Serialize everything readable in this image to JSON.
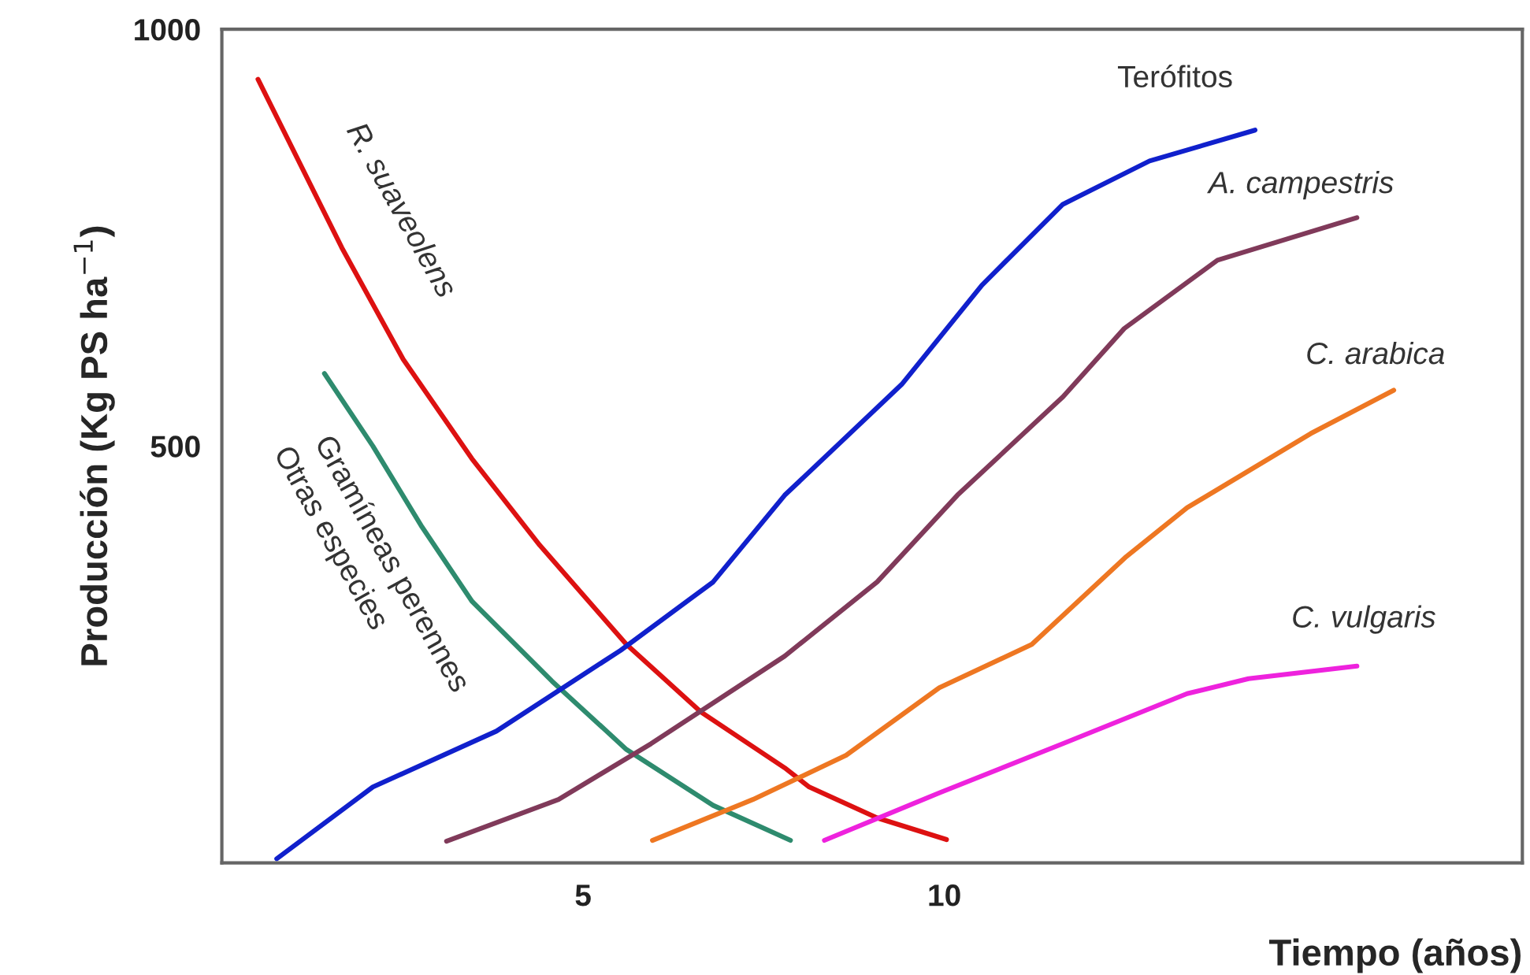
{
  "chart_data": {
    "type": "line",
    "xlabel": "Tiempo (años)",
    "ylabel": "Producción (Kg PS ha$^{−1}$)",
    "xlim": [
      0,
      18
    ],
    "ylim": [
      0,
      1000
    ],
    "xticks": [
      5,
      10
    ],
    "yticks": [
      500,
      1000
    ],
    "grid": false,
    "legend": false,
    "line_style": "solid",
    "marker": "none",
    "series": [
      {
        "color": "#dd1111",
        "x": [
          0.5,
          1.66,
          2.51,
          3.46,
          4.4,
          5.6,
          6.63,
          7.79,
          8.13,
          9.07,
          10.03
        ],
        "values": [
          940,
          738,
          604,
          485,
          381,
          262,
          181,
          114,
          91,
          54,
          28
        ]
      },
      {
        "color": "#2e8b6e",
        "x": [
          1.42,
          2.09,
          2.77,
          3.46,
          4.57,
          5.6,
          6.8,
          7.87
        ],
        "values": [
          587,
          500,
          403,
          314,
          218,
          136,
          69,
          27
        ]
      },
      {
        "color": "#1020cc",
        "x": [
          0.76,
          2.09,
          3.8,
          5.52,
          6.8,
          7.79,
          9.41,
          10.52,
          11.64,
          12.84,
          14.3
        ],
        "values": [
          5,
          91,
          158,
          255,
          337,
          441,
          574,
          693,
          790,
          842,
          879
        ]
      },
      {
        "color": "#803a5a",
        "x": [
          3.11,
          4.66,
          5.94,
          7.79,
          9.07,
          10.18,
          11.64,
          12.49,
          13.78,
          15.71
        ],
        "values": [
          26,
          76,
          143,
          248,
          337,
          441,
          559,
          641,
          723,
          774
        ]
      },
      {
        "color": "#ee7722",
        "x": [
          5.96,
          7.35,
          8.64,
          9.93,
          11.21,
          12.5,
          13.36,
          15.07,
          16.22
        ],
        "values": [
          27,
          76,
          129,
          210,
          262,
          366,
          426,
          515,
          567
        ]
      },
      {
        "color": "#ee22dd",
        "x": [
          8.34,
          9.93,
          11.64,
          13.36,
          14.21,
          15.71
        ],
        "values": [
          27,
          84,
          143,
          203,
          221,
          236
        ]
      }
    ],
    "annotations": [
      "R. suaveolens",
      "Gramíneas perennes",
      "Otras especies",
      "Terófitos",
      "A. campestris",
      "C. arabica",
      "C. vulgaris"
    ]
  }
}
